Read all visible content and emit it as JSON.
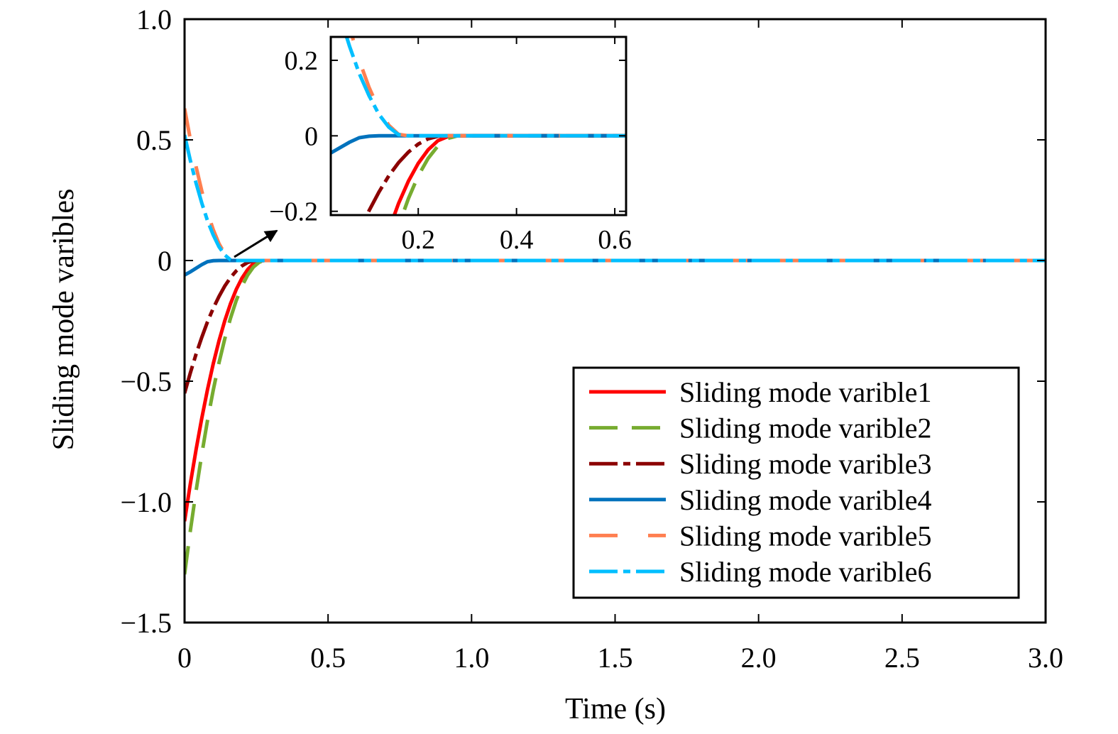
{
  "chart_data": {
    "type": "line",
    "xlabel": "Time (s)",
    "ylabel": "Sliding mode varibles",
    "xlim": [
      0,
      3.0
    ],
    "ylim": [
      -1.5,
      1.0
    ],
    "xticks": [
      "0",
      "0.5",
      "1.0",
      "1.5",
      "2.0",
      "2.5",
      "3.0"
    ],
    "xtick_values": [
      0,
      0.5,
      1.0,
      1.5,
      2.0,
      2.5,
      3.0
    ],
    "yticks": [
      "1.0",
      "0.5",
      "0",
      "−0.5",
      "−1.0",
      "−1.5"
    ],
    "ytick_values": [
      1.0,
      0.5,
      0,
      -0.5,
      -1.0,
      -1.5
    ],
    "grid": false,
    "legend_position": "bottom-right",
    "x": [
      0,
      0.02,
      0.04,
      0.06,
      0.08,
      0.1,
      0.12,
      0.14,
      0.16,
      0.18,
      0.2,
      0.22,
      0.24,
      0.26,
      0.28,
      0.3,
      3.0
    ],
    "series": [
      {
        "name": "Sliding mode varible1",
        "color": "#ff0000",
        "style": "solid",
        "values": [
          -1.08,
          -0.926,
          -0.784,
          -0.653,
          -0.535,
          -0.428,
          -0.333,
          -0.25,
          -0.179,
          -0.12,
          -0.073,
          -0.037,
          -0.013,
          -0.002,
          0,
          0,
          0
        ]
      },
      {
        "name": "Sliding mode varible2",
        "color": "#77ac30",
        "style": "dashed",
        "values": [
          -1.3,
          -1.121,
          -0.955,
          -0.802,
          -0.663,
          -0.537,
          -0.424,
          -0.325,
          -0.239,
          -0.166,
          -0.106,
          -0.06,
          -0.027,
          -0.007,
          0,
          0,
          0
        ]
      },
      {
        "name": "Sliding mode varible3",
        "color": "#8b0000",
        "style": "dashdot",
        "values": [
          -0.55,
          -0.466,
          -0.388,
          -0.318,
          -0.254,
          -0.198,
          -0.149,
          -0.106,
          -0.071,
          -0.043,
          -0.022,
          -0.008,
          -0.001,
          0,
          0,
          0,
          0
        ]
      },
      {
        "name": "Sliding mode varible4",
        "color": "#0072bd",
        "style": "solid",
        "values": [
          -0.06,
          -0.047,
          -0.032,
          -0.017,
          -0.005,
          -0.001,
          0,
          0,
          0,
          0,
          0,
          0,
          0,
          0,
          0,
          0,
          0
        ]
      },
      {
        "name": "Sliding mode varible5",
        "color": "#ff7f50",
        "style": "longdash",
        "values": [
          0.63,
          0.503,
          0.389,
          0.288,
          0.2,
          0.128,
          0.07,
          0.028,
          0.004,
          0,
          0,
          0,
          0,
          0,
          0,
          0,
          0
        ]
      },
      {
        "name": "Sliding mode varible6",
        "color": "#00bfff",
        "style": "dashdot",
        "values": [
          0.52,
          0.415,
          0.321,
          0.238,
          0.165,
          0.106,
          0.057,
          0.023,
          0.003,
          0,
          0,
          0,
          0,
          0,
          0,
          0,
          0
        ]
      }
    ],
    "inset": {
      "xlim": [
        0.022,
        0.623
      ],
      "ylim": [
        -0.21,
        0.262
      ],
      "xticks": [
        "0.2",
        "0.4",
        "0.6"
      ],
      "xtick_values": [
        0.2,
        0.4,
        0.6
      ],
      "yticks": [
        "0.2",
        "0",
        "−0.2"
      ],
      "ytick_values": [
        0.2,
        0,
        -0.2
      ]
    }
  }
}
